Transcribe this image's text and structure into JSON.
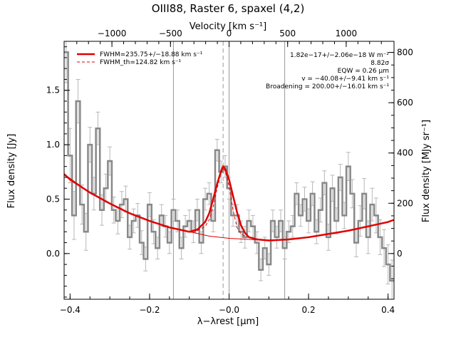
{
  "chart_data": {
    "type": "line",
    "title": "OIII88, Raster 6, spaxel (4,2)",
    "xlabel": "λ−λrest [μm]",
    "ylabel": "Flux density [Jy]",
    "top_axis_label": "Velocity [km s⁻¹]",
    "right_axis_label": "Flux density [MJy sr⁻¹]",
    "xlim": [
      -0.415,
      0.415
    ],
    "ylim": [
      -0.42,
      1.95
    ],
    "x_ticks": [
      -0.4,
      -0.2,
      0.0,
      0.2,
      0.4
    ],
    "x_tick_labels": [
      "−0.4",
      "−0.2",
      "−0.0",
      "0.2",
      "0.4"
    ],
    "y_ticks": [
      0.0,
      0.5,
      1.0,
      1.5
    ],
    "y_tick_labels": [
      "0.0",
      "0.5",
      "1.0",
      "1.5"
    ],
    "top_ticks_kms": [
      -1000,
      -500,
      0,
      500,
      1000
    ],
    "top_tick_labels": [
      "−1000",
      "−500",
      "0",
      "500",
      "1000"
    ],
    "right_ticks": [
      0,
      200,
      400,
      600,
      800
    ],
    "right_tick_labels": [
      "0",
      "200",
      "400",
      "600",
      "800"
    ],
    "vertical_lines_x": [
      -0.14,
      0.14
    ],
    "rest_line_x": -0.015,
    "zero_line_x": 0.0,
    "legend": {
      "position": "top-left",
      "items": [
        {
          "label": "FWHM=235.75+/−18.88 km s⁻¹",
          "style": "solid",
          "color": "#e00000"
        },
        {
          "label": "FWHM_th=124.82 km s⁻¹",
          "style": "dashed",
          "color": "#e00000"
        }
      ]
    },
    "annotations": [
      "1.82e−17+/−2.06e−18 W m⁻²",
      "8.82σ",
      "EQW = 0.26 μm",
      "v = −40.08+/−9.41 km s⁻¹",
      "Broadening = 200.00+/−16.01 km s⁻¹"
    ],
    "series": [
      {
        "style": "step",
        "color": "#888888",
        "x": [
          -0.41,
          -0.4,
          -0.39,
          -0.38,
          -0.37,
          -0.36,
          -0.35,
          -0.34,
          -0.33,
          -0.32,
          -0.31,
          -0.3,
          -0.29,
          -0.28,
          -0.27,
          -0.26,
          -0.25,
          -0.24,
          -0.23,
          -0.22,
          -0.21,
          -0.2,
          -0.19,
          -0.18,
          -0.17,
          -0.16,
          -0.15,
          -0.14,
          -0.13,
          -0.12,
          -0.11,
          -0.1,
          -0.09,
          -0.08,
          -0.07,
          -0.06,
          -0.05,
          -0.04,
          -0.03,
          -0.02,
          -0.01,
          0.0,
          0.01,
          0.02,
          0.03,
          0.04,
          0.05,
          0.06,
          0.07,
          0.08,
          0.09,
          0.1,
          0.11,
          0.12,
          0.13,
          0.14,
          0.15,
          0.16,
          0.17,
          0.18,
          0.19,
          0.2,
          0.21,
          0.22,
          0.23,
          0.24,
          0.25,
          0.26,
          0.27,
          0.28,
          0.29,
          0.3,
          0.31,
          0.32,
          0.33,
          0.34,
          0.35,
          0.36,
          0.37,
          0.38,
          0.39,
          0.4,
          0.41
        ],
        "values": [
          1.85,
          0.9,
          0.35,
          1.4,
          0.45,
          0.2,
          1.0,
          0.55,
          1.15,
          0.4,
          0.6,
          0.85,
          0.4,
          0.3,
          0.45,
          0.5,
          0.15,
          0.3,
          0.35,
          0.1,
          -0.05,
          0.45,
          0.2,
          0.05,
          0.35,
          0.25,
          0.1,
          0.4,
          0.3,
          0.05,
          0.25,
          0.3,
          0.2,
          0.4,
          0.1,
          0.5,
          0.55,
          0.3,
          0.95,
          0.75,
          0.8,
          0.6,
          0.35,
          0.35,
          0.2,
          0.15,
          0.3,
          0.25,
          0.1,
          -0.15,
          0.05,
          -0.1,
          0.3,
          0.15,
          0.3,
          0.05,
          0.2,
          0.25,
          0.55,
          0.35,
          0.5,
          0.3,
          0.55,
          0.2,
          0.4,
          0.65,
          0.15,
          0.6,
          0.3,
          0.7,
          0.35,
          0.8,
          0.55,
          0.1,
          0.3,
          0.55,
          0.15,
          0.45,
          0.35,
          0.15,
          0.05,
          -0.1,
          -0.25
        ],
        "errors": [
          0.28,
          0.25,
          0.22,
          0.2,
          0.18,
          0.17,
          0.16,
          0.15,
          0.15,
          0.14,
          0.13,
          0.13,
          0.12,
          0.12,
          0.12,
          0.12,
          0.11,
          0.11,
          0.11,
          0.11,
          0.11,
          0.11,
          0.11,
          0.1,
          0.1,
          0.1,
          0.1,
          0.1,
          0.1,
          0.1,
          0.1,
          0.1,
          0.1,
          0.1,
          0.1,
          0.1,
          0.1,
          0.1,
          0.1,
          0.1,
          0.1,
          0.1,
          0.1,
          0.1,
          0.1,
          0.1,
          0.1,
          0.1,
          0.1,
          0.1,
          0.1,
          0.1,
          0.1,
          0.1,
          0.1,
          0.1,
          0.1,
          0.1,
          0.1,
          0.1,
          0.11,
          0.11,
          0.11,
          0.11,
          0.11,
          0.11,
          0.12,
          0.12,
          0.12,
          0.12,
          0.12,
          0.13,
          0.13,
          0.13,
          0.14,
          0.14,
          0.15,
          0.15,
          0.16,
          0.16,
          0.17,
          0.18,
          0.19
        ]
      },
      {
        "style": "solid",
        "color": "#e00000",
        "x": [
          -0.415,
          -0.4,
          -0.35,
          -0.3,
          -0.25,
          -0.2,
          -0.15,
          -0.1,
          -0.08,
          -0.06,
          -0.05,
          -0.04,
          -0.03,
          -0.02,
          -0.015,
          -0.01,
          0.0,
          0.01,
          0.02,
          0.03,
          0.04,
          0.05,
          0.07,
          0.1,
          0.15,
          0.2,
          0.25,
          0.3,
          0.35,
          0.4,
          0.415
        ],
        "values": [
          0.73,
          0.68,
          0.56,
          0.46,
          0.37,
          0.3,
          0.24,
          0.2,
          0.22,
          0.29,
          0.37,
          0.5,
          0.64,
          0.76,
          0.8,
          0.78,
          0.68,
          0.53,
          0.38,
          0.26,
          0.19,
          0.15,
          0.13,
          0.12,
          0.13,
          0.15,
          0.18,
          0.21,
          0.25,
          0.29,
          0.31
        ]
      },
      {
        "style": "thin",
        "color": "#e00000",
        "x": [
          -0.415,
          -0.35,
          -0.3,
          -0.25,
          -0.2,
          -0.15,
          -0.1,
          -0.05,
          0.0,
          0.05,
          0.1,
          0.15,
          0.2,
          0.25,
          0.3,
          0.35,
          0.4,
          0.415
        ],
        "values": [
          0.73,
          0.56,
          0.46,
          0.37,
          0.3,
          0.24,
          0.2,
          0.16,
          0.14,
          0.13,
          0.12,
          0.13,
          0.15,
          0.18,
          0.21,
          0.25,
          0.29,
          0.31
        ]
      },
      {
        "style": "dashed",
        "color": "#e00000",
        "x": [
          -0.08,
          -0.06,
          -0.05,
          -0.04,
          -0.03,
          -0.02,
          -0.015,
          -0.01,
          0.0,
          0.01,
          0.02,
          0.03,
          0.04
        ],
        "values": [
          0.21,
          0.25,
          0.31,
          0.43,
          0.6,
          0.74,
          0.78,
          0.76,
          0.62,
          0.4,
          0.24,
          0.18,
          0.16
        ]
      }
    ]
  }
}
